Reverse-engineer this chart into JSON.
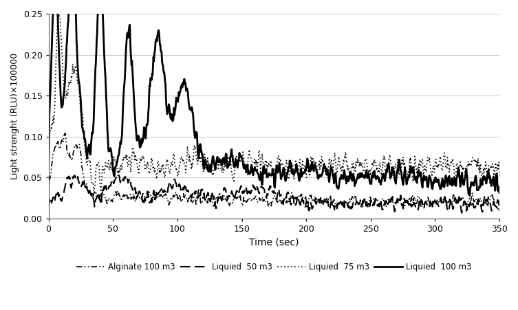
{
  "title": "",
  "xlabel": "Time (sec)",
  "ylabel": "Light strenght (RLU)×100000",
  "xlim": [
    0,
    350
  ],
  "ylim": [
    0,
    0.25
  ],
  "yticks": [
    0,
    0.05,
    0.1,
    0.15,
    0.2,
    0.25
  ],
  "xticks": [
    0,
    50,
    100,
    150,
    200,
    250,
    300,
    350
  ],
  "background_color": "#ffffff",
  "legend_labels": [
    "Alginate 100 m3",
    "Liquied  50 m3",
    "Liquied  75 m3",
    "Liquied  100 m3"
  ],
  "series_colors": [
    "#000000",
    "#000000",
    "#000000",
    "#000000"
  ],
  "series_linewidths": [
    1.2,
    1.5,
    1.2,
    2.0
  ]
}
